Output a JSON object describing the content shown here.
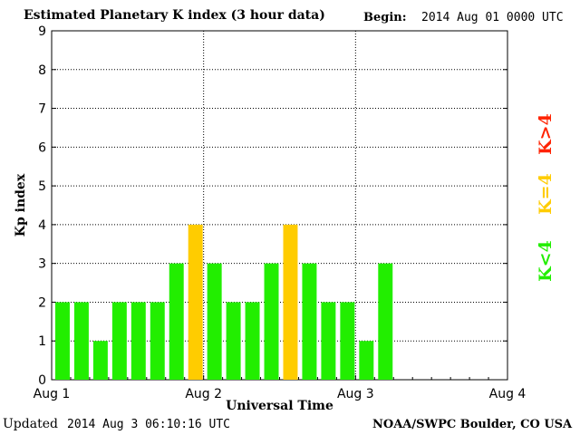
{
  "header": {
    "title": "Estimated Planetary K index (3 hour data)",
    "begin_label": "Begin:",
    "begin_value": "2014 Aug 01 0000 UTC"
  },
  "footer": {
    "updated_label": "Updated",
    "updated_value": "2014 Aug  3 06:10:16 UTC",
    "credit": "NOAA/SWPC Boulder, CO USA"
  },
  "colors": {
    "low": "#22ee00",
    "storm_threshold": "#ffcc00",
    "high": "#ff2200"
  },
  "chart_data": {
    "type": "bar",
    "xlabel": "Universal Time",
    "ylabel": "Kp index",
    "ylim": [
      0,
      9
    ],
    "yticks": [
      0,
      1,
      2,
      3,
      4,
      5,
      6,
      7,
      8,
      9
    ],
    "x_ticks": [
      "Aug 1",
      "Aug 2",
      "Aug 3",
      "Aug 4"
    ],
    "bins_per_day": 8,
    "grid": true,
    "values": [
      2,
      2,
      1,
      2,
      2,
      2,
      3,
      4,
      3,
      2,
      2,
      3,
      4,
      3,
      2,
      2,
      1,
      3
    ],
    "legend": [
      {
        "label": "K<4",
        "color": "#22ee00"
      },
      {
        "label": "K=4",
        "color": "#ffcc00"
      },
      {
        "label": "K>4",
        "color": "#ff2200"
      }
    ],
    "legend_placement": "right"
  }
}
